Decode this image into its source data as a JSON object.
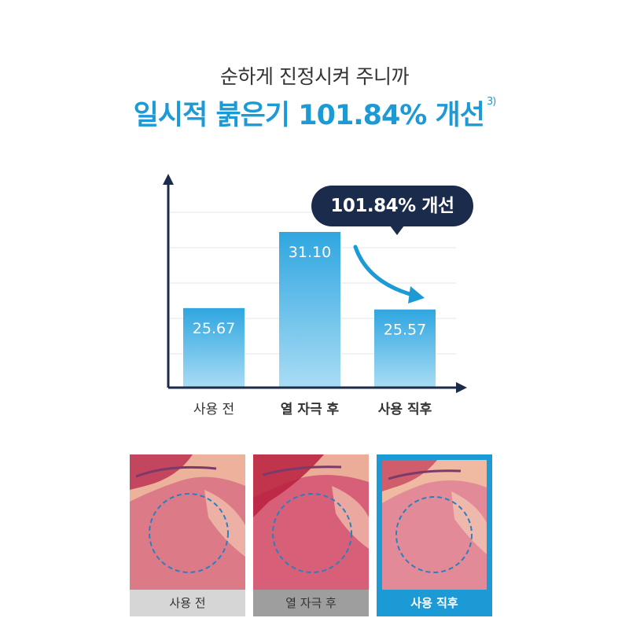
{
  "header": {
    "subtitle": "순하게 진정시켜 주니까",
    "title": "일시적 붉은기 101.84% 개선",
    "footnote": "3)"
  },
  "callout": {
    "text": "101.84% 개선"
  },
  "colors": {
    "accent": "#1c9ad6",
    "navy": "#1b2b4b",
    "bar_top": "#2fa6e0",
    "bar_bottom": "#a9dcf5"
  },
  "chart_data": {
    "type": "bar",
    "categories": [
      "사용 전",
      "열 자극 후",
      "사용 직후"
    ],
    "values": [
      25.67,
      31.1,
      25.57
    ],
    "value_labels": [
      "25.67",
      "31.10",
      "25.57"
    ],
    "category_bold": [
      false,
      true,
      true
    ],
    "title": "",
    "xlabel": "",
    "ylabel": "",
    "ylim": [
      20,
      32.5
    ],
    "grid": true,
    "annotation": "101.84% 개선"
  },
  "photos": [
    {
      "label": "사용 전",
      "active": false
    },
    {
      "label": "열 자극 후",
      "active": false
    },
    {
      "label": "사용 직후",
      "active": true
    }
  ]
}
